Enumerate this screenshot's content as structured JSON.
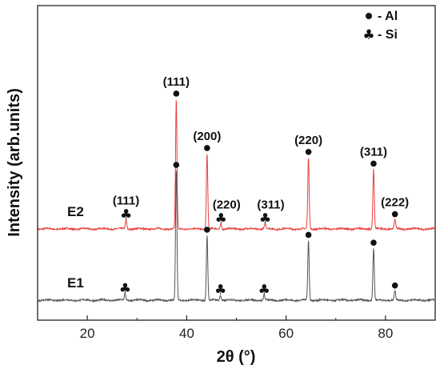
{
  "chart_data": {
    "type": "line",
    "xlabel": "2θ (°)",
    "ylabel": "Intensity (arb.units)",
    "xlim": [
      10,
      90
    ],
    "xticks": [
      20,
      40,
      60,
      80
    ],
    "grid": false,
    "legend_position": "top-right",
    "legend": [
      {
        "symbol": "●",
        "label": "- Al",
        "phase": "Al"
      },
      {
        "symbol": "♣",
        "label": "- Si",
        "phase": "Si"
      }
    ],
    "series": [
      {
        "name": "E2",
        "color": "#e8413f",
        "baseline": 0.55,
        "peaks": [
          {
            "x": 27.8,
            "height": 0.07
          },
          {
            "x": 37.9,
            "height": 1.0
          },
          {
            "x": 44.1,
            "height": 0.58
          },
          {
            "x": 46.9,
            "height": 0.04
          },
          {
            "x": 55.8,
            "height": 0.04
          },
          {
            "x": 64.5,
            "height": 0.55
          },
          {
            "x": 77.6,
            "height": 0.46
          },
          {
            "x": 81.9,
            "height": 0.07
          }
        ],
        "markers": [
          {
            "x": 27.8,
            "phase": "Si",
            "label": "(111)"
          },
          {
            "x": 37.9,
            "phase": "Al",
            "label": "(111)"
          },
          {
            "x": 44.1,
            "phase": "Al",
            "label": "(200)"
          },
          {
            "x": 46.9,
            "phase": "Si",
            "label": "(220)"
          },
          {
            "x": 55.8,
            "phase": "Si",
            "label": "(311)"
          },
          {
            "x": 64.5,
            "phase": "Al",
            "label": "(220)"
          },
          {
            "x": 77.6,
            "phase": "Al",
            "label": "(311)"
          },
          {
            "x": 81.9,
            "phase": "Al",
            "label": "(222)"
          }
        ]
      },
      {
        "name": "E1",
        "color": "#555555",
        "baseline": 0.0,
        "peaks": [
          {
            "x": 27.6,
            "height": 0.05
          },
          {
            "x": 37.9,
            "height": 1.0
          },
          {
            "x": 44.1,
            "height": 0.5
          },
          {
            "x": 46.8,
            "height": 0.04
          },
          {
            "x": 55.6,
            "height": 0.04
          },
          {
            "x": 64.5,
            "height": 0.46
          },
          {
            "x": 77.6,
            "height": 0.4
          },
          {
            "x": 81.9,
            "height": 0.07
          }
        ],
        "markers": [
          {
            "x": 27.6,
            "phase": "Si"
          },
          {
            "x": 37.9,
            "phase": "Al"
          },
          {
            "x": 44.1,
            "phase": "Al"
          },
          {
            "x": 46.8,
            "phase": "Si"
          },
          {
            "x": 55.6,
            "phase": "Si"
          },
          {
            "x": 64.5,
            "phase": "Al"
          },
          {
            "x": 77.6,
            "phase": "Al"
          },
          {
            "x": 81.9,
            "phase": "Al"
          }
        ]
      }
    ]
  }
}
